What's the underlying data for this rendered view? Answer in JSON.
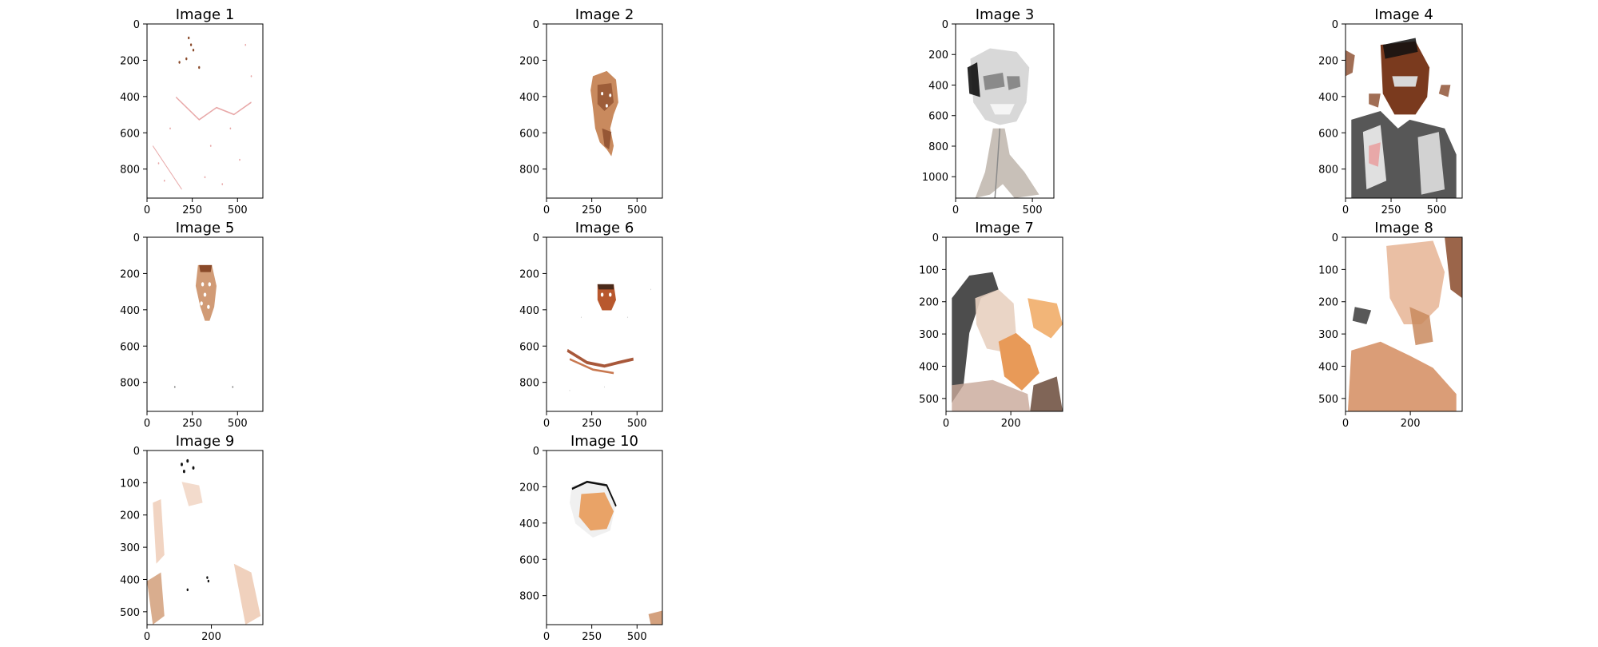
{
  "figure": {
    "panels": [
      {
        "title": "Image 1",
        "yticks": [
          "0",
          "200",
          "400",
          "600",
          "800"
        ],
        "xticks": [
          "0",
          "250",
          "500"
        ],
        "content": "sparse-pink-edges"
      },
      {
        "title": "Image 2",
        "yticks": [
          "0",
          "200",
          "400",
          "600",
          "800"
        ],
        "xticks": [
          "0",
          "250",
          "500"
        ],
        "content": "face-brown"
      },
      {
        "title": "Image 3",
        "yticks": [
          "0",
          "200",
          "400",
          "600",
          "800",
          "1000"
        ],
        "xticks": [
          "0",
          "500"
        ],
        "content": "face-grayscale"
      },
      {
        "title": "Image 4",
        "yticks": [
          "0",
          "200",
          "400",
          "600",
          "800"
        ],
        "xticks": [
          "0",
          "250",
          "500"
        ],
        "content": "person-dark-suit"
      },
      {
        "title": "Image 5",
        "yticks": [
          "0",
          "200",
          "400",
          "600",
          "800"
        ],
        "xticks": [
          "0",
          "250",
          "500"
        ],
        "content": "small-face-tan"
      },
      {
        "title": "Image 6",
        "yticks": [
          "0",
          "200",
          "400",
          "600",
          "800"
        ],
        "xticks": [
          "0",
          "250",
          "500"
        ],
        "content": "face-and-hands"
      },
      {
        "title": "Image 7",
        "yticks": [
          "0",
          "100",
          "200",
          "300",
          "400",
          "500"
        ],
        "xticks": [
          "0",
          "200"
        ],
        "content": "face-hair-orange"
      },
      {
        "title": "Image 8",
        "yticks": [
          "0",
          "100",
          "200",
          "300",
          "400",
          "500"
        ],
        "xticks": [
          "0",
          "200"
        ],
        "content": "face-tan-large"
      },
      {
        "title": "Image 9",
        "yticks": [
          "0",
          "100",
          "200",
          "300",
          "400",
          "500"
        ],
        "xticks": [
          "0",
          "200"
        ],
        "content": "faint-skin"
      },
      {
        "title": "Image 10",
        "yticks": [
          "0",
          "200",
          "400",
          "600",
          "800"
        ],
        "xticks": [
          "0",
          "250",
          "500"
        ],
        "content": "face-orange-small"
      }
    ]
  },
  "colors": {
    "skin_light": "#e8b89a",
    "skin_mid": "#c98a5e",
    "skin_dark": "#8a4a2a",
    "orange": "#e89a58",
    "pink": "#e8a8a8",
    "gray": "#8a8a8a",
    "black": "#111111"
  },
  "chart_data": {
    "type": "image-grid",
    "panels": [
      {
        "title": "Image 1",
        "x_range": [
          0,
          640
        ],
        "y_range": [
          0,
          960
        ],
        "x_ticks": [
          0,
          250,
          500
        ],
        "y_ticks": [
          0,
          200,
          400,
          600,
          800
        ]
      },
      {
        "title": "Image 2",
        "x_range": [
          0,
          640
        ],
        "y_range": [
          0,
          960
        ],
        "x_ticks": [
          0,
          250,
          500
        ],
        "y_ticks": [
          0,
          200,
          400,
          600,
          800
        ]
      },
      {
        "title": "Image 3",
        "x_range": [
          0,
          640
        ],
        "y_range": [
          0,
          1140
        ],
        "x_ticks": [
          0,
          500
        ],
        "y_ticks": [
          0,
          200,
          400,
          600,
          800,
          1000
        ]
      },
      {
        "title": "Image 4",
        "x_range": [
          0,
          640
        ],
        "y_range": [
          0,
          960
        ],
        "x_ticks": [
          0,
          250,
          500
        ],
        "y_ticks": [
          0,
          200,
          400,
          600,
          800
        ]
      },
      {
        "title": "Image 5",
        "x_range": [
          0,
          640
        ],
        "y_range": [
          0,
          960
        ],
        "x_ticks": [
          0,
          250,
          500
        ],
        "y_ticks": [
          0,
          200,
          400,
          600,
          800
        ]
      },
      {
        "title": "Image 6",
        "x_range": [
          0,
          640
        ],
        "y_range": [
          0,
          960
        ],
        "x_ticks": [
          0,
          250,
          500
        ],
        "y_ticks": [
          0,
          200,
          400,
          600,
          800
        ]
      },
      {
        "title": "Image 7",
        "x_range": [
          0,
          360
        ],
        "y_range": [
          0,
          540
        ],
        "x_ticks": [
          0,
          200
        ],
        "y_ticks": [
          0,
          100,
          200,
          300,
          400,
          500
        ]
      },
      {
        "title": "Image 8",
        "x_range": [
          0,
          360
        ],
        "y_range": [
          0,
          540
        ],
        "x_ticks": [
          0,
          200
        ],
        "y_ticks": [
          0,
          100,
          200,
          300,
          400,
          500
        ]
      },
      {
        "title": "Image 9",
        "x_range": [
          0,
          360
        ],
        "y_range": [
          0,
          540
        ],
        "x_ticks": [
          0,
          200
        ],
        "y_ticks": [
          0,
          100,
          200,
          300,
          400,
          500
        ]
      },
      {
        "title": "Image 10",
        "x_range": [
          0,
          640
        ],
        "y_range": [
          0,
          960
        ],
        "x_ticks": [
          0,
          250,
          500
        ],
        "y_ticks": [
          0,
          200,
          400,
          600,
          800
        ]
      }
    ]
  }
}
